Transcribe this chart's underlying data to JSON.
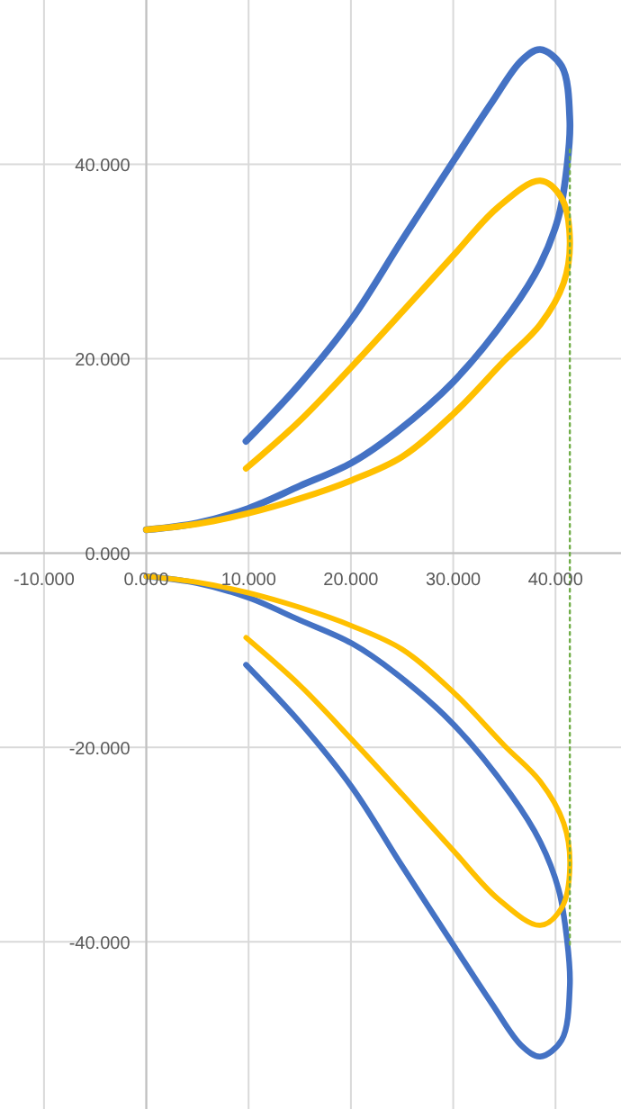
{
  "chart_data": {
    "type": "line",
    "xlim": [
      -14.3,
      46.4
    ],
    "ylim": [
      -57.2,
      56.9
    ],
    "xticks": [
      {
        "value": -10,
        "label": "-10.000"
      },
      {
        "value": 0,
        "label": "0.000"
      },
      {
        "value": 10,
        "label": "10.000"
      },
      {
        "value": 20,
        "label": "20.000"
      },
      {
        "value": 30,
        "label": "30.000"
      },
      {
        "value": 40,
        "label": "40.000"
      }
    ],
    "yticks": [
      {
        "value": -40,
        "label": "-40.000"
      },
      {
        "value": -20,
        "label": "-20.000"
      },
      {
        "value": 0,
        "label": "0.000"
      },
      {
        "value": 20,
        "label": "20.000"
      },
      {
        "value": 40,
        "label": "40.000"
      }
    ],
    "grid": true,
    "marker": "none",
    "line_style": "solid",
    "series": [
      {
        "color": "#4472c4",
        "x": [
          9.75,
          15,
          20.1,
          25,
          30,
          33.8,
          36.7,
          38.5,
          40.6,
          41.4,
          41.1,
          40.3,
          38.5,
          35.6,
          30,
          24.4,
          20.1,
          15,
          10,
          5,
          0
        ],
        "values": [
          11.5,
          17.4,
          24.1,
          32.2,
          40.3,
          46.4,
          50.7,
          51.8,
          50.1,
          44.5,
          39.6,
          34.6,
          29.7,
          24.8,
          17.6,
          12.4,
          9.3,
          6.9,
          4.6,
          3.1,
          2.4
        ]
      },
      {
        "color": "#ffc000",
        "x": [
          9.75,
          15,
          20.1,
          25,
          30,
          34.4,
          38.5,
          40.6,
          41.4,
          40.8,
          38.5,
          35,
          30,
          25,
          20.1,
          15,
          10,
          5,
          0
        ],
        "values": [
          8.7,
          13.6,
          19.2,
          24.8,
          30.6,
          35.6,
          38.3,
          36.5,
          32.2,
          27.8,
          23.5,
          19.8,
          14.3,
          9.9,
          7.5,
          5.6,
          4.1,
          3.0,
          2.4
        ]
      },
      {
        "color": "#4472c4",
        "x": [
          9.75,
          15,
          20.1,
          25,
          30,
          33.8,
          36.7,
          38.5,
          40.6,
          41.4,
          41.1,
          40.3,
          38.5,
          35.6,
          30,
          24.4,
          20.1,
          15,
          10,
          5,
          0
        ],
        "values": [
          -11.5,
          -17.4,
          -24.1,
          -32.2,
          -40.3,
          -46.4,
          -50.7,
          -51.8,
          -50.1,
          -44.5,
          -39.6,
          -34.6,
          -29.7,
          -24.8,
          -17.6,
          -12.4,
          -9.3,
          -6.9,
          -4.6,
          -3.1,
          -2.4
        ]
      },
      {
        "color": "#ffc000",
        "x": [
          9.75,
          15,
          20.1,
          25,
          30,
          34.4,
          38.5,
          40.6,
          41.4,
          40.8,
          38.5,
          35,
          30,
          25,
          20.1,
          15,
          10,
          5,
          0
        ],
        "values": [
          -8.7,
          -13.6,
          -19.2,
          -24.8,
          -30.6,
          -35.6,
          -38.3,
          -36.5,
          -32.2,
          -27.8,
          -23.5,
          -19.8,
          -14.3,
          -9.9,
          -7.5,
          -5.6,
          -4.1,
          -3.0,
          -2.4
        ]
      },
      {
        "color": "#70ad47",
        "line_style": "dotted",
        "x": [
          41.4,
          41.4
        ],
        "values": [
          41.5,
          -40.6
        ]
      }
    ]
  }
}
